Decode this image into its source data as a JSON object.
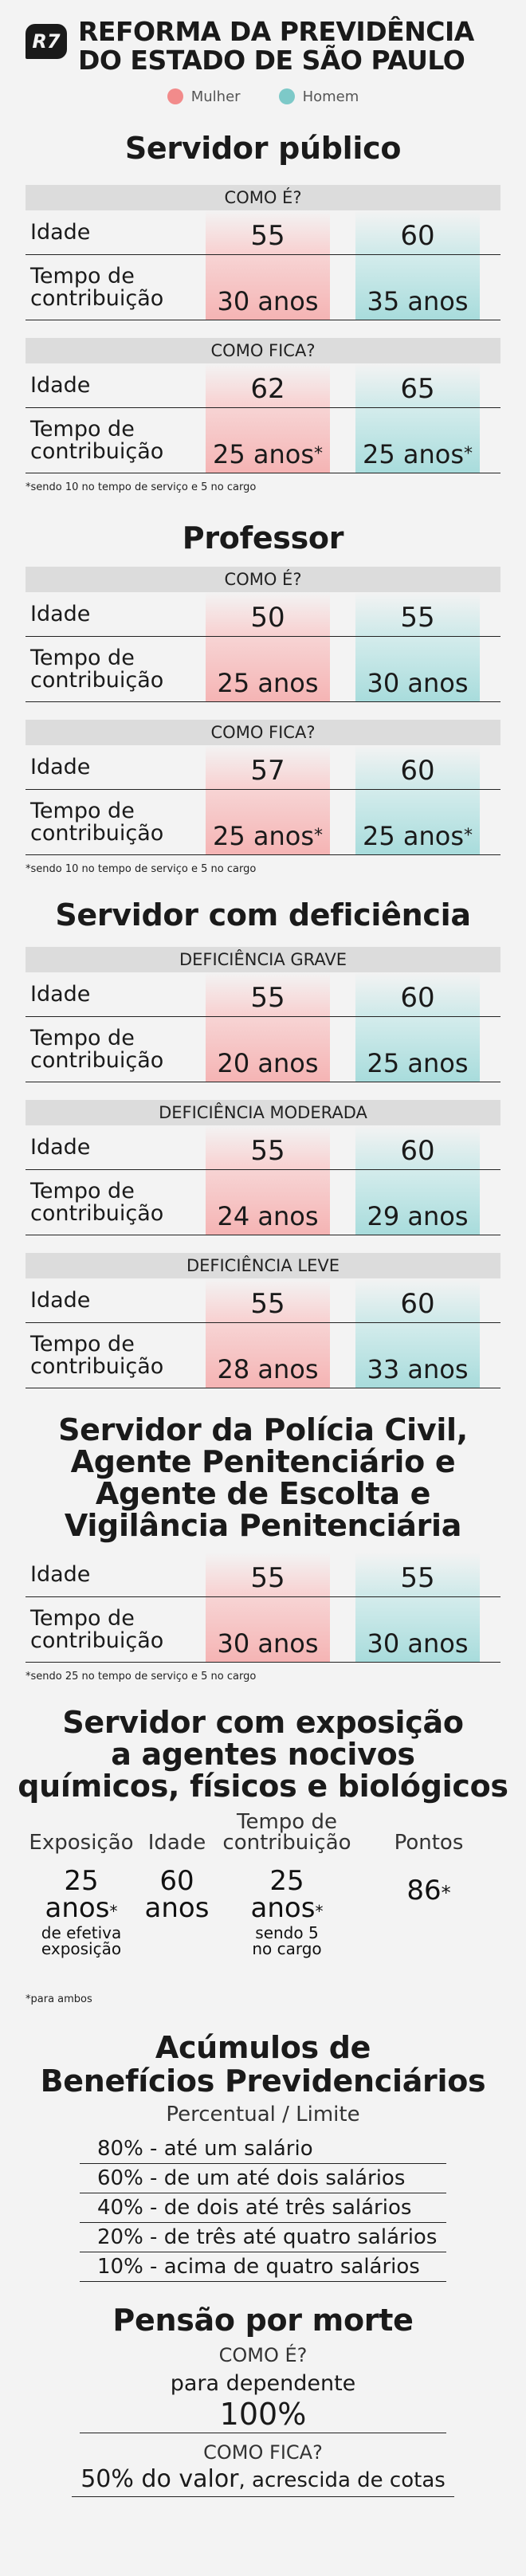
{
  "header": {
    "logo": "R7",
    "title_line1": "REFORMA DA PREVIDÊNCIA",
    "title_line2": "DO ESTADO DE SÃO PAULO"
  },
  "legend": {
    "female": "Mulher",
    "male": "Homem",
    "female_color": "#f28b8b",
    "male_color": "#7dc9c8"
  },
  "s1": {
    "title": "Servidor público",
    "t1": {
      "head": "COMO É?",
      "age_label": "Idade",
      "contrib_label1": "Tempo de",
      "contrib_label2": "contribuição",
      "age_f": "55",
      "age_m": "60",
      "contrib_f": "30 anos",
      "contrib_m": "35 anos"
    },
    "t2": {
      "head": "COMO FICA?",
      "age_label": "Idade",
      "contrib_label1": "Tempo de",
      "contrib_label2": "contribuição",
      "age_f": "62",
      "age_m": "65",
      "contrib_f": "25 anos",
      "contrib_m": "25 anos",
      "mark": "*"
    },
    "note": "*sendo 10 no tempo de serviço e 5 no cargo"
  },
  "s2": {
    "title": "Professor",
    "t1": {
      "head": "COMO É?",
      "age_label": "Idade",
      "contrib_label1": "Tempo de",
      "contrib_label2": "contribuição",
      "age_f": "50",
      "age_m": "55",
      "contrib_f": "25 anos",
      "contrib_m": "30 anos"
    },
    "t2": {
      "head": "COMO FICA?",
      "age_label": "Idade",
      "contrib_label1": "Tempo de",
      "contrib_label2": "contribuição",
      "age_f": "57",
      "age_m": "60",
      "contrib_f": "25 anos",
      "contrib_m": "25 anos",
      "mark": "*"
    },
    "note": "*sendo 10 no tempo de serviço e 5 no cargo"
  },
  "s3": {
    "title": "Servidor com deficiência",
    "t1": {
      "head": "DEFICIÊNCIA GRAVE",
      "age_label": "Idade",
      "contrib_label1": "Tempo de",
      "contrib_label2": "contribuição",
      "age_f": "55",
      "age_m": "60",
      "contrib_f": "20 anos",
      "contrib_m": "25 anos"
    },
    "t2": {
      "head": "DEFICIÊNCIA MODERADA",
      "age_label": "Idade",
      "contrib_label1": "Tempo de",
      "contrib_label2": "contribuição",
      "age_f": "55",
      "age_m": "60",
      "contrib_f": "24 anos",
      "contrib_m": "29 anos"
    },
    "t3": {
      "head": "DEFICIÊNCIA LEVE",
      "age_label": "Idade",
      "contrib_label1": "Tempo de",
      "contrib_label2": "contribuição",
      "age_f": "55",
      "age_m": "60",
      "contrib_f": "28 anos",
      "contrib_m": "33 anos"
    }
  },
  "s4": {
    "title1": "Servidor da Polícia Civil,",
    "title2": "Agente Penitenciário e",
    "title3": "Agente de Escolta e",
    "title4": "Vigilância Penitenciária",
    "t1": {
      "age_label": "Idade",
      "contrib_label1": "Tempo de",
      "contrib_label2": "contribuição",
      "age_f": "55",
      "age_m": "55",
      "contrib_f": "30 anos",
      "contrib_m": "30 anos"
    },
    "note": "*sendo 25 no tempo de serviço e 5 no cargo"
  },
  "s5": {
    "title1": "Servidor com exposição",
    "title2": "a agentes nocivos",
    "title3": "químicos, físicos e biológicos",
    "col1_h": "Exposição",
    "col1_v1": "25",
    "col1_v2": "anos",
    "col1_mark": "*",
    "col1_s1": "de efetiva",
    "col1_s2": "exposição",
    "col2_h": "Idade",
    "col2_v1": "60",
    "col2_v2": "anos",
    "col3_h1": "Tempo de",
    "col3_h2": "contribuição",
    "col3_v1": "25",
    "col3_v2": "anos",
    "col3_mark": "*",
    "col3_s1": "sendo 5",
    "col3_s2": "no cargo",
    "col4_h": "Pontos",
    "col4_v": "86",
    "col4_mark": "*",
    "note": "*para ambos"
  },
  "s6": {
    "title1": "Acúmulos de",
    "title2": "Benefícios Previdenciários",
    "subtitle": "Percentual / Limite",
    "items": [
      "80% - até um salário",
      "60% - de um até dois salários",
      "40% - de dois até três salários",
      "20% - de três até quatro salários",
      "10% - acima de quatro salários"
    ]
  },
  "s7": {
    "title": "Pensão por morte",
    "head1": "COMO É?",
    "line1": "para dependente",
    "value1": "100%",
    "head2": "COMO FICA?",
    "value2_bold": "50% do valor",
    "value2_rest": ", acrescida de cotas"
  }
}
